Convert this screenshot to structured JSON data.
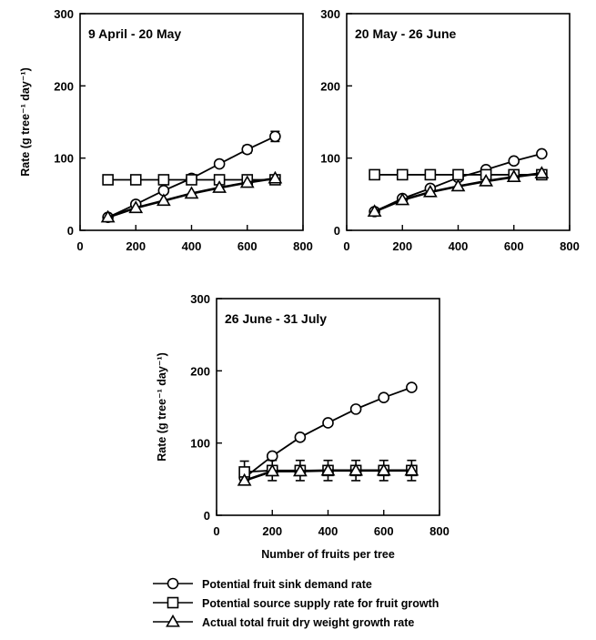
{
  "chart_data": [
    {
      "type": "line",
      "title": "9 April - 20 May",
      "xlabel": "",
      "ylabel": "Rate (g tree⁻¹ day⁻¹)",
      "xlim": [
        0,
        800
      ],
      "ylim": [
        0,
        300
      ],
      "xticks": [
        "0",
        "200",
        "400",
        "600",
        "800"
      ],
      "yticks": [
        "0",
        "100",
        "200",
        "300"
      ],
      "x": [
        100,
        200,
        300,
        400,
        500,
        600,
        700
      ],
      "series": [
        {
          "marker": "circle",
          "values": [
            18,
            36,
            55,
            72,
            92,
            112,
            130
          ],
          "error": [
            0,
            0,
            0,
            0,
            4,
            5,
            7
          ]
        },
        {
          "marker": "square",
          "values": [
            70,
            70,
            70,
            70,
            70,
            70,
            70
          ],
          "error": [
            0,
            0,
            0,
            0,
            0,
            0,
            0
          ]
        },
        {
          "marker": "triangle",
          "values": [
            18,
            31,
            41,
            51,
            59,
            66,
            72
          ],
          "error": [
            0,
            0,
            0,
            0,
            0,
            0,
            0
          ]
        }
      ],
      "grid": false
    },
    {
      "type": "line",
      "title": "20 May - 26 June",
      "xlabel": "",
      "ylabel": "",
      "xlim": [
        0,
        800
      ],
      "ylim": [
        0,
        300
      ],
      "xticks": [
        "0",
        "200",
        "400",
        "600",
        "800"
      ],
      "yticks": [
        "0",
        "100",
        "200",
        "300"
      ],
      "x": [
        100,
        200,
        300,
        400,
        500,
        600,
        700
      ],
      "series": [
        {
          "marker": "circle",
          "values": [
            26,
            44,
            58,
            73,
            84,
            96,
            106
          ],
          "error": [
            0,
            0,
            0,
            0,
            0,
            0,
            0
          ]
        },
        {
          "marker": "square",
          "values": [
            77,
            77,
            77,
            77,
            77,
            77,
            77
          ],
          "error": [
            0,
            0,
            0,
            0,
            0,
            0,
            0
          ]
        },
        {
          "marker": "triangle",
          "values": [
            26,
            42,
            53,
            61,
            68,
            74,
            79
          ],
          "error": [
            0,
            0,
            0,
            0,
            0,
            0,
            0
          ]
        }
      ],
      "grid": false
    },
    {
      "type": "line",
      "title": "26 June - 31 July",
      "xlabel": "Number of fruits per tree",
      "ylabel": "Rate (g tree⁻¹ day⁻¹)",
      "xlim": [
        0,
        800
      ],
      "ylim": [
        0,
        300
      ],
      "xticks": [
        "0",
        "200",
        "400",
        "600",
        "800"
      ],
      "yticks": [
        "0",
        "100",
        "200",
        "300"
      ],
      "x": [
        100,
        200,
        300,
        400,
        500,
        600,
        700
      ],
      "series": [
        {
          "marker": "circle",
          "values": [
            52,
            82,
            108,
            128,
            147,
            163,
            177
          ],
          "error": [
            0,
            0,
            0,
            0,
            0,
            0,
            0
          ]
        },
        {
          "marker": "square",
          "values": [
            60,
            62,
            62,
            62,
            62,
            62,
            62
          ],
          "error": [
            15,
            14,
            14,
            14,
            14,
            14,
            14
          ]
        },
        {
          "marker": "triangle",
          "values": [
            48,
            61,
            61,
            62,
            62,
            62,
            62
          ],
          "error": [
            0,
            0,
            0,
            0,
            0,
            0,
            0
          ]
        }
      ],
      "grid": false
    }
  ],
  "legend": {
    "placement": "bottom",
    "items": [
      {
        "marker": "circle",
        "label": "Potential fruit sink demand rate"
      },
      {
        "marker": "square",
        "label": "Potential source supply rate for fruit growth"
      },
      {
        "marker": "triangle",
        "label": "Actual total fruit dry weight growth rate"
      }
    ]
  }
}
